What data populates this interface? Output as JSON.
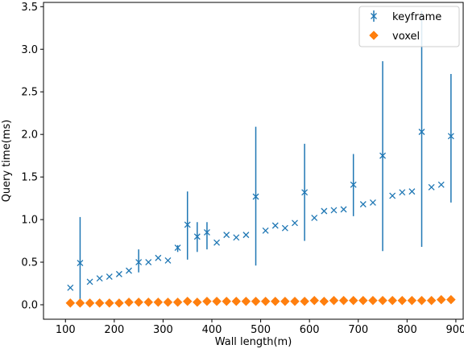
{
  "chart_data": {
    "type": "scatter",
    "xlabel": "Wall length(m)",
    "ylabel": "Query time(ms)",
    "xlim": [
      55,
      915
    ],
    "ylim": [
      -0.17,
      3.55
    ],
    "xticks": [
      "100",
      "200",
      "300",
      "400",
      "500",
      "600",
      "700",
      "800",
      "900"
    ],
    "yticks": [
      "0.0",
      "0.5",
      "1.0",
      "1.5",
      "2.0",
      "2.5",
      "3.0",
      "3.5"
    ],
    "grid": false,
    "legend_position": "top-right",
    "series": [
      {
        "name": "keyframe",
        "marker": "x",
        "color": "#1f77b4",
        "x": [
          110,
          130,
          150,
          170,
          190,
          210,
          230,
          250,
          270,
          290,
          310,
          330,
          350,
          370,
          390,
          410,
          430,
          450,
          470,
          490,
          510,
          530,
          550,
          570,
          590,
          610,
          630,
          650,
          670,
          690,
          710,
          730,
          750,
          770,
          790,
          810,
          830,
          850,
          870,
          890
        ],
        "y": [
          0.2,
          0.49,
          0.27,
          0.31,
          0.33,
          0.36,
          0.4,
          0.5,
          0.5,
          0.55,
          0.52,
          0.67,
          0.94,
          0.8,
          0.85,
          0.73,
          0.82,
          0.79,
          0.82,
          1.27,
          0.87,
          0.93,
          0.9,
          0.96,
          1.32,
          1.02,
          1.1,
          1.11,
          1.12,
          1.41,
          1.18,
          1.2,
          1.75,
          1.28,
          1.32,
          1.33,
          2.03,
          1.38,
          1.41,
          1.98
        ],
        "error_low": [
          null,
          0.02,
          null,
          null,
          null,
          null,
          null,
          0.38,
          null,
          null,
          null,
          0.62,
          0.53,
          0.62,
          0.65,
          null,
          null,
          null,
          null,
          0.46,
          null,
          null,
          null,
          null,
          0.75,
          null,
          null,
          null,
          null,
          1.04,
          null,
          null,
          0.63,
          null,
          null,
          null,
          0.68,
          null,
          null,
          1.2
        ],
        "error_high": [
          null,
          1.03,
          null,
          null,
          null,
          null,
          null,
          0.65,
          null,
          null,
          null,
          0.7,
          1.33,
          0.97,
          0.97,
          null,
          null,
          null,
          null,
          2.09,
          null,
          null,
          null,
          null,
          1.89,
          null,
          null,
          null,
          null,
          1.77,
          null,
          null,
          2.86,
          null,
          null,
          null,
          3.45,
          null,
          null,
          2.71
        ]
      },
      {
        "name": "voxel",
        "marker": "diamond",
        "color": "#ff7f0e",
        "x": [
          110,
          130,
          150,
          170,
          190,
          210,
          230,
          250,
          270,
          290,
          310,
          330,
          350,
          370,
          390,
          410,
          430,
          450,
          470,
          490,
          510,
          530,
          550,
          570,
          590,
          610,
          630,
          650,
          670,
          690,
          710,
          730,
          750,
          770,
          790,
          810,
          830,
          850,
          870,
          890
        ],
        "y": [
          0.02,
          0.02,
          0.02,
          0.02,
          0.02,
          0.02,
          0.03,
          0.03,
          0.03,
          0.03,
          0.03,
          0.03,
          0.04,
          0.03,
          0.04,
          0.04,
          0.04,
          0.04,
          0.04,
          0.04,
          0.04,
          0.04,
          0.04,
          0.04,
          0.04,
          0.05,
          0.04,
          0.05,
          0.05,
          0.05,
          0.05,
          0.05,
          0.05,
          0.05,
          0.05,
          0.05,
          0.05,
          0.05,
          0.06,
          0.06
        ]
      }
    ]
  }
}
